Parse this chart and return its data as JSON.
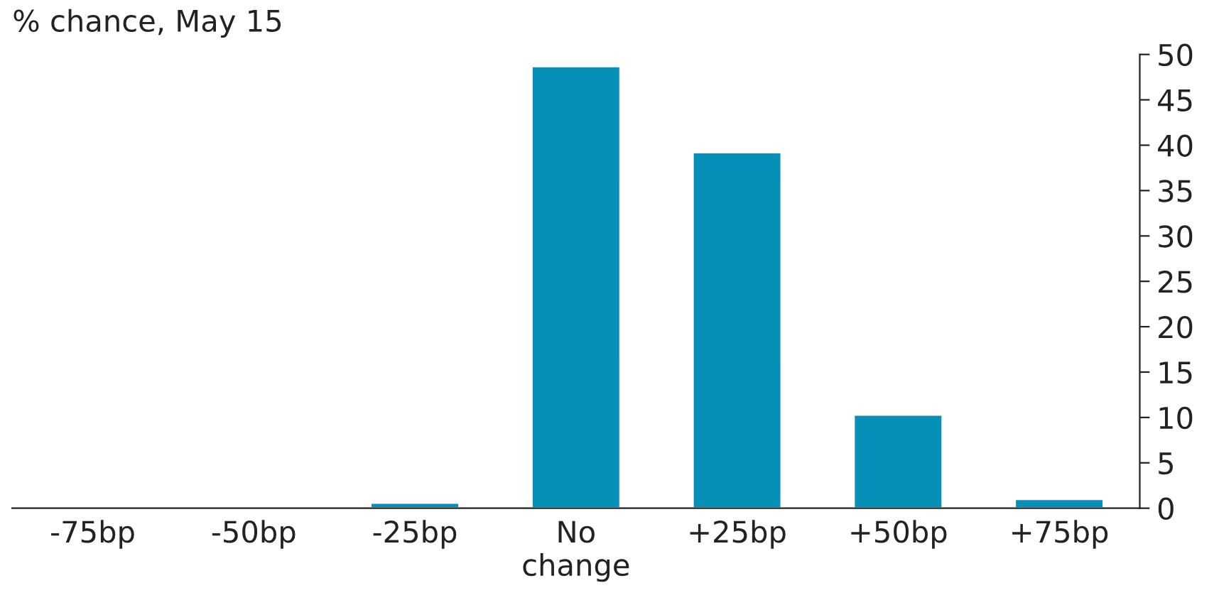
{
  "chart_data": {
    "type": "bar",
    "title": "% chance, May 15",
    "categories": [
      "-75bp",
      "-50bp",
      "-25bp",
      "No\nchange",
      "+25bp",
      "+50bp",
      "+75bp"
    ],
    "values": [
      0,
      0,
      0.6,
      48.7,
      39.2,
      10.3,
      1.0
    ],
    "color": "#068fb7",
    "ylim": [
      0,
      50
    ],
    "yticks": [
      0,
      5,
      10,
      15,
      20,
      25,
      30,
      35,
      40,
      45,
      50
    ],
    "grid": false
  }
}
